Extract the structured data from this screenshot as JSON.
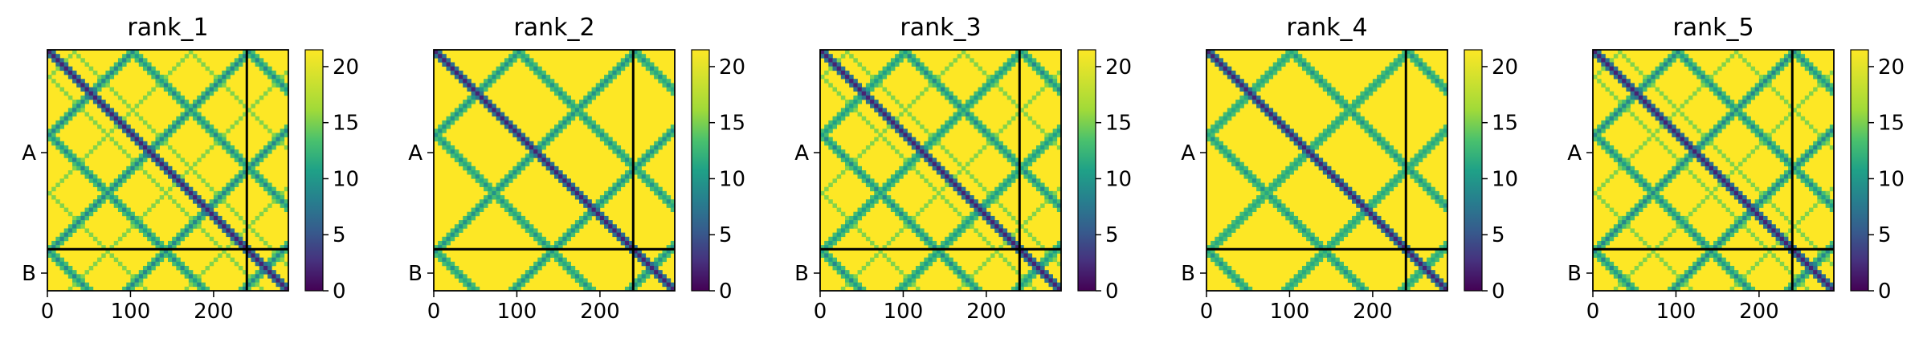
{
  "chart_data": [
    {
      "type": "heatmap",
      "title": "rank_1",
      "x_ticks": [
        "0",
        "100",
        "200"
      ],
      "y_ticks": [
        "A",
        "B"
      ],
      "colorbar_ticks": [
        "0",
        "5",
        "10",
        "15",
        "20"
      ],
      "colorbar_range": [
        0,
        21.5
      ],
      "x_range": [
        0,
        290
      ],
      "boundary": 240
    },
    {
      "type": "heatmap",
      "title": "rank_2",
      "x_ticks": [
        "0",
        "100",
        "200"
      ],
      "y_ticks": [
        "A",
        "B"
      ],
      "colorbar_ticks": [
        "0",
        "5",
        "10",
        "15",
        "20"
      ],
      "colorbar_range": [
        0,
        21.5
      ],
      "x_range": [
        0,
        290
      ],
      "boundary": 240
    },
    {
      "type": "heatmap",
      "title": "rank_3",
      "x_ticks": [
        "0",
        "100",
        "200"
      ],
      "y_ticks": [
        "A",
        "B"
      ],
      "colorbar_ticks": [
        "0",
        "5",
        "10",
        "15",
        "20"
      ],
      "colorbar_range": [
        0,
        21.5
      ],
      "x_range": [
        0,
        290
      ],
      "boundary": 240
    },
    {
      "type": "heatmap",
      "title": "rank_4",
      "x_ticks": [
        "0",
        "100",
        "200"
      ],
      "y_ticks": [
        "A",
        "B"
      ],
      "colorbar_ticks": [
        "0",
        "5",
        "10",
        "15",
        "20"
      ],
      "colorbar_range": [
        0,
        21.5
      ],
      "x_range": [
        0,
        290
      ],
      "boundary": 240
    },
    {
      "type": "heatmap",
      "title": "rank_5",
      "x_ticks": [
        "0",
        "100",
        "200"
      ],
      "y_ticks": [
        "A",
        "B"
      ],
      "colorbar_ticks": [
        "0",
        "5",
        "10",
        "15",
        "20"
      ],
      "colorbar_range": [
        0,
        21.5
      ],
      "x_range": [
        0,
        290
      ],
      "boundary": 240
    }
  ],
  "colormap": "viridis",
  "colors": {
    "background": "#fde725",
    "low": "#440154",
    "mid": "#21918c",
    "high": "#fde725"
  }
}
